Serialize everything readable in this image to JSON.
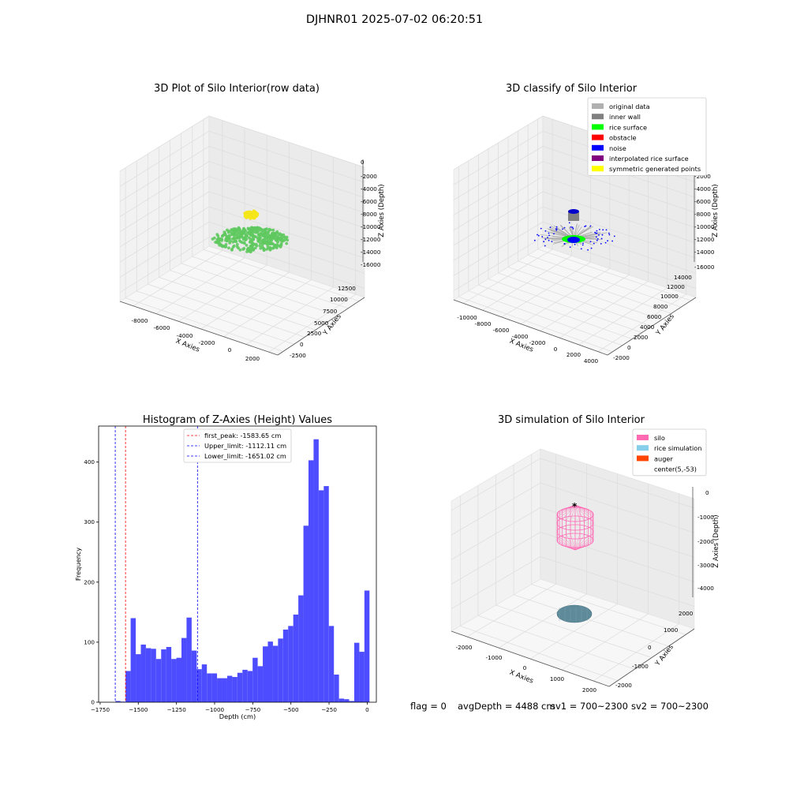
{
  "suptitle": "DJHNR01 2025-07-02 06:20:51",
  "status": {
    "flag": "flag = 0",
    "avg_depth": "avgDepth = 4488 cm",
    "sv1": "sv1 = 700~2300",
    "sv2": "sv2 = 700~2300"
  },
  "chart_data": [
    {
      "type": "scatter3d",
      "title": "3D Plot of Silo Interior(row data)",
      "xlabel": "X Axies",
      "ylabel": "Y Axies",
      "zlabel": "Z Axies (Depth)",
      "xticks": [
        "-8000",
        "-6000",
        "-4000",
        "-2000",
        "0",
        "2000"
      ],
      "yticks": [
        "-2500",
        "0",
        "2500",
        "5000",
        "7500",
        "10000",
        "12500"
      ],
      "zticks": [
        "0",
        "-2000",
        "-4000",
        "-6000",
        "-8000",
        "-10000",
        "-12000",
        "-14000",
        "-16000"
      ],
      "xlim": [
        -9000,
        3000
      ],
      "ylim": [
        -3000,
        13500
      ],
      "zlim": [
        -16000,
        0
      ],
      "series": [
        {
          "color": "#5fc95f",
          "description": "surface points",
          "center": [
            -2000,
            1200
          ],
          "z": -12500
        },
        {
          "color": "#f5e61a",
          "description": "top points",
          "center": [
            -2000,
            1500
          ],
          "z": -9500
        }
      ]
    },
    {
      "type": "scatter3d",
      "title": "3D classify of Silo Interior",
      "xlabel": "X Axies",
      "ylabel": "Y Axies",
      "zlabel": "Z Axies (Depth)",
      "xticks": [
        "-10000",
        "-8000",
        "-6000",
        "-4000",
        "-2000",
        "0",
        "2000",
        "4000"
      ],
      "yticks": [
        "-2000",
        "0",
        "2000",
        "4000",
        "6000",
        "8000",
        "10000",
        "12000",
        "14000"
      ],
      "zticks": [
        "0",
        "-2000",
        "-4000",
        "-6000",
        "-8000",
        "-10000",
        "-12000",
        "-14000",
        "-16000"
      ],
      "xlim": [
        -11000,
        4500
      ],
      "ylim": [
        -2500,
        14500
      ],
      "zlim": [
        -16000,
        0
      ],
      "legend_position": "top-right",
      "legend": [
        {
          "name": "original data",
          "color": "#b0b0b0"
        },
        {
          "name": "inner wall",
          "color": "#808080"
        },
        {
          "name": "rice surface",
          "color": "#00ff00"
        },
        {
          "name": "obstacle",
          "color": "#ff0000"
        },
        {
          "name": "noise",
          "color": "#0000ff"
        },
        {
          "name": "interpolated rice surface",
          "color": "#800080"
        },
        {
          "name": "symmetric generated points",
          "color": "#ffff00"
        }
      ]
    },
    {
      "type": "bar",
      "title": "Histogram of Z-Axies (Height) Values",
      "xlabel": "Depth (cm)",
      "ylabel": "Frequency",
      "xlim": [
        -1760,
        60
      ],
      "ylim": [
        0,
        460
      ],
      "xticks": [
        -1750,
        -1500,
        -1250,
        -1000,
        -750,
        -500,
        -250,
        0
      ],
      "yticks": [
        0,
        100,
        200,
        300,
        400
      ],
      "bin_start": -1650,
      "bin_width": 33.3,
      "values": [
        2,
        1,
        52,
        140,
        80,
        96,
        90,
        89,
        72,
        88,
        92,
        72,
        74,
        107,
        141,
        86,
        55,
        63,
        48,
        48,
        40,
        40,
        44,
        42,
        49,
        54,
        52,
        74,
        60,
        93,
        101,
        94,
        106,
        121,
        127,
        146,
        178,
        294,
        403,
        438,
        353,
        360,
        127,
        46,
        6,
        5,
        2,
        99,
        84,
        186
      ],
      "bar_color": "#4d4dff",
      "lines": [
        {
          "label": "first_peak: -1583.65 cm",
          "x": -1583.65,
          "color": "#ff0000"
        },
        {
          "label": "Upper_limit: -1112.11 cm",
          "x": -1112.11,
          "color": "#0000ff"
        },
        {
          "label": "Lower_limit: -1651.02 cm",
          "x": -1651.02,
          "color": "#0000ff"
        }
      ],
      "legend_position": "top-center",
      "grid": false
    },
    {
      "type": "surface3d",
      "title": "3D simulation of Silo Interior",
      "xlabel": "X Axies",
      "ylabel": "Y Axies",
      "zlabel": "Z Axies (Depth)",
      "xticks": [
        "-2000",
        "-1000",
        "0",
        "1000",
        "2000"
      ],
      "yticks": [
        "-2000",
        "-1000",
        "0",
        "1000",
        "2000"
      ],
      "zticks": [
        "0",
        "-1000",
        "-2000",
        "-3000",
        "-4000"
      ],
      "xlim": [
        -2500,
        2500
      ],
      "ylim": [
        -2500,
        2500
      ],
      "zlim": [
        -4500,
        0
      ],
      "legend_position": "top-right",
      "legend": [
        {
          "name": "silo",
          "color": "#ff69b4"
        },
        {
          "name": "rice simulation",
          "color": "#87ceeb"
        },
        {
          "name": "auger",
          "color": "#ff4500"
        },
        {
          "name": "center(5,-53)",
          "color": "#ffffff"
        }
      ]
    }
  ]
}
